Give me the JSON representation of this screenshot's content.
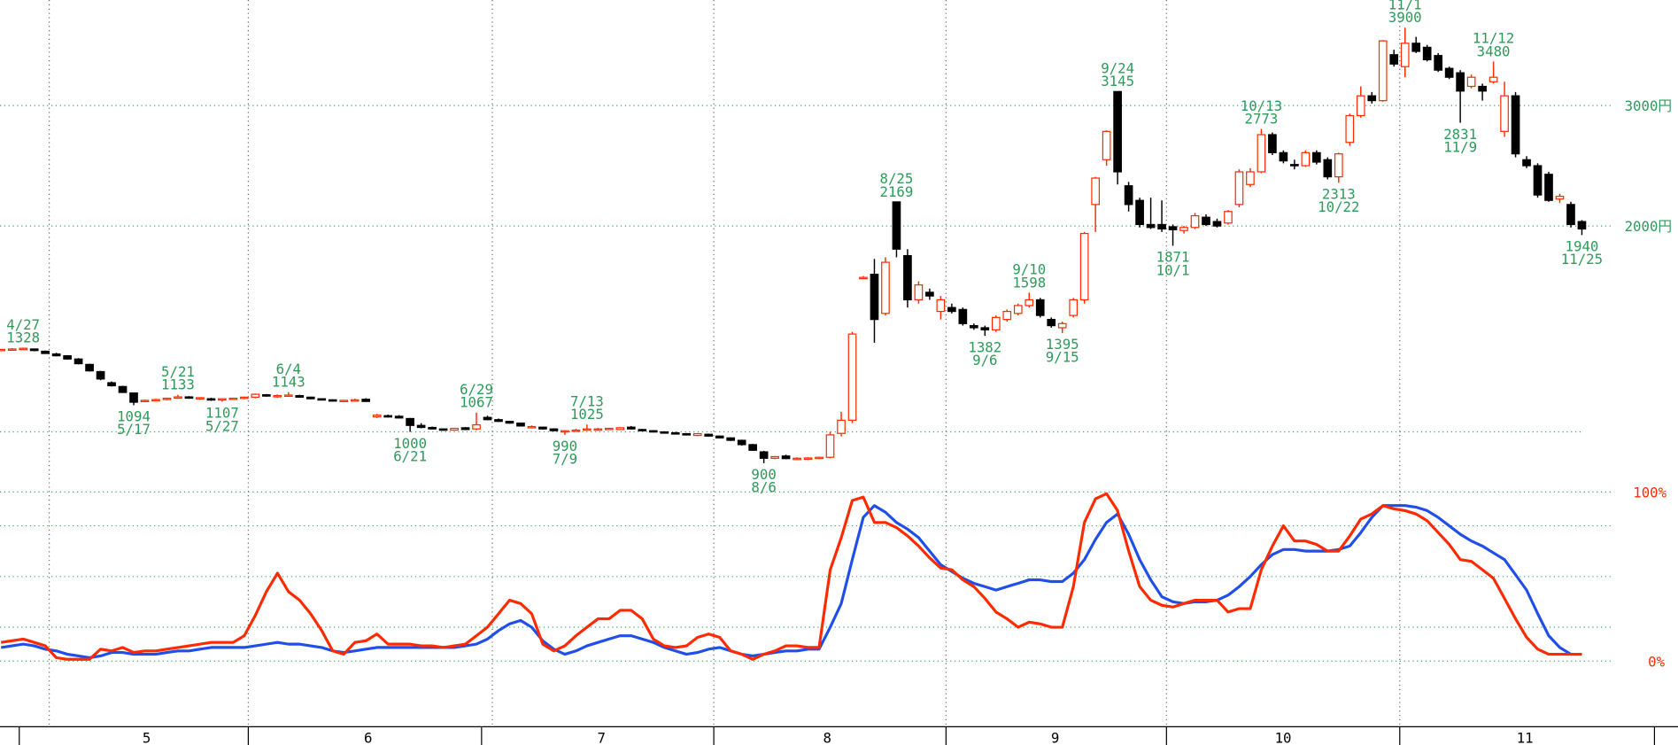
{
  "chart_data": [
    {
      "type": "candlestick",
      "up_color": "#ff2a00",
      "down_color": "#000000",
      "log_scale": true,
      "ylim": [
        850,
        4280
      ],
      "yticks": [
        {
          "value": 2000,
          "label": "2000円"
        },
        {
          "value": 3000,
          "label": "3000円"
        }
      ],
      "grid_values": [
        1000,
        2000,
        3000
      ],
      "x_labels": [
        "5",
        "6",
        "7",
        "8",
        "9",
        "10",
        "11"
      ],
      "ohlc": [
        [
          1318,
          1322,
          1315,
          1320
        ],
        [
          1320,
          1325,
          1318,
          1322
        ],
        [
          1322,
          1328,
          1320,
          1325
        ],
        [
          1322,
          1324,
          1312,
          1315
        ],
        [
          1312,
          1315,
          1300,
          1302
        ],
        [
          1300,
          1305,
          1290,
          1292
        ],
        [
          1292,
          1295,
          1275,
          1278
        ],
        [
          1278,
          1282,
          1255,
          1258
        ],
        [
          1255,
          1258,
          1225,
          1228
        ],
        [
          1225,
          1228,
          1190,
          1195
        ],
        [
          1180,
          1185,
          1165,
          1168
        ],
        [
          1165,
          1168,
          1140,
          1142
        ],
        [
          1140,
          1142,
          1094,
          1105
        ],
        [
          1108,
          1115,
          1105,
          1112
        ],
        [
          1112,
          1118,
          1108,
          1115
        ],
        [
          1115,
          1122,
          1112,
          1120
        ],
        [
          1120,
          1133,
          1118,
          1125
        ],
        [
          1125,
          1128,
          1118,
          1122
        ],
        [
          1120,
          1124,
          1114,
          1122
        ],
        [
          1118,
          1122,
          1110,
          1116
        ],
        [
          1116,
          1120,
          1107,
          1118
        ],
        [
          1118,
          1122,
          1114,
          1120
        ],
        [
          1120,
          1126,
          1116,
          1124
        ],
        [
          1124,
          1138,
          1120,
          1135
        ],
        [
          1133,
          1136,
          1126,
          1130
        ],
        [
          1128,
          1134,
          1122,
          1130
        ],
        [
          1130,
          1143,
          1125,
          1132
        ],
        [
          1130,
          1133,
          1122,
          1124
        ],
        [
          1124,
          1126,
          1116,
          1118
        ],
        [
          1118,
          1120,
          1112,
          1114
        ],
        [
          1114,
          1116,
          1108,
          1110
        ],
        [
          1110,
          1114,
          1106,
          1112
        ],
        [
          1112,
          1118,
          1108,
          1114
        ],
        [
          1116,
          1120,
          1106,
          1108
        ],
        [
          1052,
          1062,
          1048,
          1058
        ],
        [
          1056,
          1060,
          1050,
          1054
        ],
        [
          1054,
          1058,
          1046,
          1048
        ],
        [
          1046,
          1048,
          1000,
          1022
        ],
        [
          1022,
          1030,
          1012,
          1015
        ],
        [
          1015,
          1018,
          1008,
          1010
        ],
        [
          1010,
          1012,
          1004,
          1006
        ],
        [
          1006,
          1014,
          1004,
          1012
        ],
        [
          1014,
          1016,
          1006,
          1008
        ],
        [
          1010,
          1067,
          1006,
          1024
        ],
        [
          1050,
          1056,
          1040,
          1042
        ],
        [
          1042,
          1046,
          1034,
          1036
        ],
        [
          1036,
          1038,
          1028,
          1030
        ],
        [
          1030,
          1032,
          1018,
          1020
        ],
        [
          1016,
          1022,
          1012,
          1018
        ],
        [
          1016,
          1018,
          1008,
          1010
        ],
        [
          1010,
          1012,
          1002,
          1004
        ],
        [
          1000,
          1006,
          990,
          1004
        ],
        [
          1004,
          1010,
          1000,
          1006
        ],
        [
          1006,
          1025,
          1004,
          1010
        ],
        [
          1010,
          1014,
          1006,
          1010
        ],
        [
          1010,
          1014,
          1006,
          1012
        ],
        [
          1008,
          1016,
          1006,
          1014
        ],
        [
          1016,
          1020,
          1008,
          1010
        ],
        [
          1008,
          1010,
          1002,
          1004
        ],
        [
          1004,
          1006,
          998,
          1000
        ],
        [
          1000,
          1002,
          995,
          997
        ],
        [
          997,
          1000,
          992,
          994
        ],
        [
          994,
          996,
          988,
          990
        ],
        [
          988,
          996,
          986,
          994
        ],
        [
          992,
          994,
          984,
          986
        ],
        [
          986,
          988,
          978,
          980
        ],
        [
          980,
          982,
          970,
          972
        ],
        [
          972,
          974,
          955,
          958
        ],
        [
          958,
          960,
          938,
          940
        ],
        [
          935,
          938,
          900,
          915
        ],
        [
          915,
          922,
          912,
          920
        ],
        [
          922,
          926,
          912,
          914
        ],
        [
          914,
          918,
          910,
          915
        ],
        [
          914,
          918,
          910,
          916
        ],
        [
          915,
          920,
          912,
          918
        ],
        [
          918,
          1000,
          915,
          990
        ],
        [
          995,
          1070,
          985,
          1040
        ],
        [
          1040,
          1400,
          1030,
          1390
        ],
        [
          1680,
          1690,
          1675,
          1682
        ],
        [
          1700,
          1790,
          1350,
          1460
        ],
        [
          1490,
          1800,
          1480,
          1770
        ],
        [
          2169,
          2169,
          1800,
          1850
        ],
        [
          1810,
          1850,
          1520,
          1560
        ],
        [
          1560,
          1660,
          1540,
          1640
        ],
        [
          1600,
          1620,
          1560,
          1580
        ],
        [
          1500,
          1580,
          1460,
          1560
        ],
        [
          1520,
          1540,
          1490,
          1500
        ],
        [
          1510,
          1520,
          1430,
          1440
        ],
        [
          1430,
          1440,
          1410,
          1420
        ],
        [
          1420,
          1430,
          1382,
          1410
        ],
        [
          1410,
          1480,
          1400,
          1470
        ],
        [
          1460,
          1510,
          1450,
          1500
        ],
        [
          1490,
          1540,
          1480,
          1530
        ],
        [
          1530,
          1598,
          1520,
          1560
        ],
        [
          1560,
          1570,
          1470,
          1480
        ],
        [
          1460,
          1470,
          1420,
          1430
        ],
        [
          1420,
          1450,
          1395,
          1440
        ],
        [
          1480,
          1570,
          1470,
          1560
        ],
        [
          1560,
          1960,
          1540,
          1950
        ],
        [
          2150,
          2360,
          1960,
          2350
        ],
        [
          2500,
          2760,
          2450,
          2750
        ],
        [
          3145,
          3145,
          2300,
          2400
        ],
        [
          2290,
          2320,
          2100,
          2150
        ],
        [
          2180,
          2200,
          1990,
          2010
        ],
        [
          2010,
          2200,
          1980,
          1990
        ],
        [
          2010,
          2180,
          1960,
          1980
        ],
        [
          1995,
          2010,
          1871,
          1975
        ],
        [
          1970,
          2000,
          1950,
          1990
        ],
        [
          1990,
          2090,
          1980,
          2070
        ],
        [
          2060,
          2080,
          2000,
          2010
        ],
        [
          2030,
          2050,
          1990,
          2000
        ],
        [
          2020,
          2110,
          2010,
          2100
        ],
        [
          2150,
          2420,
          2130,
          2400
        ],
        [
          2300,
          2430,
          2280,
          2400
        ],
        [
          2400,
          2773,
          2390,
          2720
        ],
        [
          2720,
          2740,
          2540,
          2560
        ],
        [
          2560,
          2580,
          2470,
          2490
        ],
        [
          2460,
          2500,
          2420,
          2450
        ],
        [
          2450,
          2580,
          2440,
          2560
        ],
        [
          2560,
          2580,
          2460,
          2480
        ],
        [
          2500,
          2520,
          2340,
          2360
        ],
        [
          2360,
          2560,
          2313,
          2550
        ],
        [
          2650,
          2920,
          2620,
          2900
        ],
        [
          2900,
          3200,
          2880,
          3100
        ],
        [
          3100,
          3140,
          3020,
          3050
        ],
        [
          3050,
          3740,
          3040,
          3730
        ],
        [
          3560,
          3620,
          3420,
          3450
        ],
        [
          3420,
          3900,
          3300,
          3700
        ],
        [
          3700,
          3780,
          3580,
          3600
        ],
        [
          3650,
          3680,
          3480,
          3500
        ],
        [
          3550,
          3580,
          3360,
          3380
        ],
        [
          3400,
          3420,
          3280,
          3300
        ],
        [
          3350,
          3380,
          2831,
          3150
        ],
        [
          3200,
          3330,
          3180,
          3300
        ],
        [
          3200,
          3230,
          3050,
          3150
        ],
        [
          3250,
          3480,
          3230,
          3300
        ],
        [
          2750,
          3250,
          2700,
          3100
        ],
        [
          3100,
          3140,
          2520,
          2550
        ],
        [
          2500,
          2530,
          2430,
          2450
        ],
        [
          2450,
          2470,
          2200,
          2220
        ],
        [
          2380,
          2400,
          2170,
          2180
        ],
        [
          2190,
          2230,
          2160,
          2210
        ],
        [
          2150,
          2170,
          1990,
          2010
        ],
        [
          2030,
          2040,
          1940,
          1980
        ]
      ],
      "annotations": [
        {
          "date": "4/27",
          "value": 1328,
          "at": "high"
        },
        {
          "date": "5/17",
          "value": 1094,
          "at": "low"
        },
        {
          "date": "5/21",
          "value": 1133,
          "at": "high"
        },
        {
          "date": "5/27",
          "value": 1107,
          "at": "low"
        },
        {
          "date": "6/4",
          "value": 1143,
          "at": "high"
        },
        {
          "date": "6/21",
          "value": 1000,
          "at": "low"
        },
        {
          "date": "6/29",
          "value": 1067,
          "at": "high"
        },
        {
          "date": "7/9",
          "value": 990,
          "at": "low"
        },
        {
          "date": "7/13",
          "value": 1025,
          "at": "high"
        },
        {
          "date": "8/6",
          "value": 900,
          "at": "low"
        },
        {
          "date": "8/25",
          "value": 2169,
          "at": "high"
        },
        {
          "date": "9/6",
          "value": 1382,
          "at": "low"
        },
        {
          "date": "9/10",
          "value": 1598,
          "at": "high"
        },
        {
          "date": "9/15",
          "value": 1395,
          "at": "low"
        },
        {
          "date": "9/24",
          "value": 3145,
          "at": "high"
        },
        {
          "date": "10/1",
          "value": 1871,
          "at": "low"
        },
        {
          "date": "10/13",
          "value": 2773,
          "at": "high"
        },
        {
          "date": "10/22",
          "value": 2313,
          "at": "low"
        },
        {
          "date": "11/1",
          "value": 3900,
          "at": "high"
        },
        {
          "date": "11/9",
          "value": 2831,
          "at": "low"
        },
        {
          "date": "11/12",
          "value": 3480,
          "at": "high"
        },
        {
          "date": "11/25",
          "value": 1940,
          "at": "low"
        }
      ]
    },
    {
      "type": "line",
      "ylim": [
        0,
        100
      ],
      "yticks": [
        {
          "value": 0,
          "label": "0%"
        },
        {
          "value": 100,
          "label": "100%"
        }
      ],
      "grid_values": [
        0,
        20,
        50,
        80,
        100
      ],
      "series": [
        {
          "color": "#ff2a00",
          "values": [
            11,
            12,
            13,
            11,
            9,
            2,
            1,
            1,
            1,
            7,
            6,
            8,
            5,
            6,
            6,
            7,
            8,
            9,
            10,
            11,
            11,
            11,
            15,
            27,
            41,
            52,
            41,
            36,
            28,
            18,
            6,
            4,
            11,
            12,
            16,
            10,
            10,
            10,
            9,
            9,
            8,
            9,
            10,
            15,
            20,
            28,
            36,
            34,
            28,
            10,
            6,
            9,
            15,
            20,
            25,
            25,
            30,
            30,
            25,
            13,
            9,
            8,
            9,
            14,
            16,
            14,
            6,
            4,
            1,
            4,
            6,
            9,
            9,
            8,
            8,
            54,
            73,
            95,
            97,
            82,
            82,
            79,
            74,
            68,
            61,
            55,
            54,
            48,
            44,
            37,
            29,
            25,
            20,
            23,
            22,
            20,
            20,
            44,
            82,
            96,
            99,
            89,
            65,
            44,
            36,
            33,
            32,
            34,
            36,
            36,
            36,
            29,
            31,
            31,
            54,
            68,
            80,
            71,
            71,
            69,
            65,
            65,
            74,
            84,
            87,
            92,
            90,
            89,
            87,
            83,
            76,
            69,
            60,
            59,
            54,
            49,
            37,
            25,
            14,
            7,
            4,
            4,
            4,
            4
          ]
        },
        {
          "color": "#1f4fe8",
          "values": [
            8,
            9,
            10,
            9,
            7,
            6,
            4,
            3,
            2,
            3,
            5,
            5,
            4,
            4,
            4,
            5,
            6,
            6,
            7,
            8,
            8,
            8,
            8,
            9,
            10,
            11,
            10,
            10,
            9,
            8,
            6,
            5,
            6,
            7,
            8,
            8,
            8,
            8,
            8,
            8,
            8,
            8,
            9,
            10,
            13,
            18,
            22,
            24,
            20,
            12,
            7,
            4,
            6,
            9,
            11,
            13,
            15,
            15,
            13,
            11,
            8,
            6,
            4,
            5,
            7,
            8,
            6,
            4,
            3,
            4,
            5,
            6,
            6,
            7,
            7,
            20,
            34,
            60,
            85,
            92,
            88,
            82,
            78,
            73,
            65,
            57,
            53,
            49,
            46,
            44,
            42,
            44,
            46,
            48,
            48,
            47,
            47,
            52,
            60,
            72,
            82,
            87,
            75,
            60,
            48,
            38,
            35,
            34,
            35,
            35,
            36,
            39,
            44,
            50,
            57,
            63,
            66,
            66,
            65,
            65,
            65,
            66,
            68,
            76,
            85,
            92,
            92,
            92,
            91,
            89,
            85,
            80,
            75,
            71,
            68,
            64,
            60,
            51,
            42,
            28,
            15,
            8,
            4,
            4
          ]
        }
      ]
    }
  ]
}
